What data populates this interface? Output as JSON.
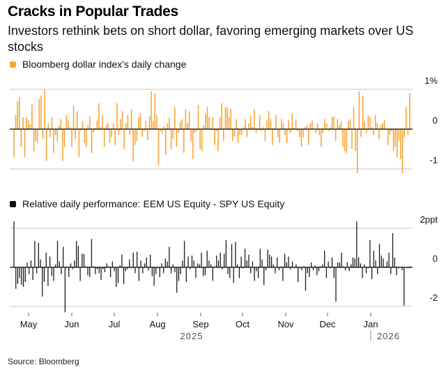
{
  "header": {
    "title": "Cracks in Popular Trades",
    "subtitle": "Investors rethink bets on short dollar, favoring emerging markets over US stocks"
  },
  "footer": {
    "source": "Source: Bloomberg"
  },
  "colors": {
    "dollar_bar": "#f7a535",
    "relative_bar": "#1a1a1a",
    "grid": "#e3e3e3",
    "zero": "#000000"
  },
  "chart_data": [
    {
      "type": "bar",
      "title": "Bloomberg dollar index's daily change",
      "legend": "Bloomberg dollar index's daily change",
      "unit": "%",
      "ylim": [
        -1.1,
        1.05
      ],
      "yticks": [
        {
          "value": 1,
          "label": "1%"
        },
        {
          "value": 0,
          "label": "0"
        },
        {
          "value": -1,
          "label": "-1"
        }
      ],
      "grid": true,
      "values": [
        -0.7,
        0.35,
        0.7,
        0.8,
        -0.45,
        0.3,
        -0.7,
        0.3,
        0.22,
        0.12,
        0.62,
        -0.55,
        -0.3,
        -0.35,
        0.75,
        0.85,
        -0.25,
        1.0,
        -0.8,
        0.15,
        -0.2,
        0.3,
        -0.6,
        -0.15,
        -0.3,
        0.1,
        0.25,
        -0.8,
        -0.45,
        0.35,
        0.22,
        0.05,
        -0.45,
        0.6,
        -0.25,
        0.45,
        -0.7,
        -0.05,
        0.2,
        -0.35,
        -0.45,
        0.1,
        0.32,
        -0.6,
        -0.08,
        0.03,
        0.22,
        0.65,
        0.05,
        0.35,
        -0.45,
        0.1,
        0.15,
        -0.35,
        -0.2,
        0.15,
        -0.4,
        0.65,
        -0.15,
        0.25,
        0.45,
        -0.5,
        0.15,
        0.35,
        -0.15,
        0.5,
        -0.8,
        -0.4,
        -0.3,
        0.3,
        0.4,
        -0.2,
        -0.05,
        0.2,
        -0.28,
        0.32,
        0.95,
        0.2,
        0.9,
        0.35,
        -0.9,
        -0.05,
        -0.1,
        0.08,
        -0.65,
        0.15,
        0.3,
        -0.5,
        -0.25,
        0.55,
        -0.45,
        -0.1,
        0.2,
        0.25,
        -0.6,
        0.5,
        0.15,
        0.45,
        -0.3,
        -0.75,
        -0.1,
        -0.05,
        0.6,
        -0.5,
        -0.55,
        0.1,
        0.38,
        0.55,
        0.3,
        -0.02,
        0.3,
        -0.4,
        -0.05,
        -0.55,
        0.3,
        0.65,
        -0.3,
        0.55,
        0.55,
        0.3,
        0.5,
        -0.3,
        -0.18,
        0.25,
        -0.35,
        -0.15,
        -0.15,
        0.05,
        0.25,
        -0.2,
        0.15,
        0.32,
        0.05,
        0.5,
        -0.1,
        0.02,
        0.35,
        -0.05,
        0.05,
        -0.3,
        0.22,
        0.45,
        0.25,
        -0.4,
        0.02,
        0.35,
        -0.2,
        -0.35,
        0.25,
        0.15,
        -0.15,
        -0.35,
        0.22,
        -0.1,
        0.4,
        0.02,
        0.25,
        -0.05,
        -0.2,
        -0.45,
        -0.2,
        0.05,
        0.1,
        -0.4,
        0.15,
        0.22,
        0.02,
        -0.1,
        0.15,
        -0.15,
        -0.45,
        -0.1,
        0.25,
        0.15,
        -0.05,
        0.05,
        0.3,
        0.32,
        -0.3,
        0.25,
        0.1,
        0.2,
        -0.45,
        -0.55,
        -0.6,
        0.2,
        0.25,
        -0.5,
        0.55,
        -0.55,
        -1.1,
        0.95,
        -0.2,
        0.85,
        0.2,
        -0.1,
        0.35,
        0.3,
        0.05,
        -0.15,
        0.35,
        0.15,
        -0.25,
        0.1,
        0.15,
        0.22,
        0.0,
        -0.4,
        -0.15,
        -0.05,
        -0.55,
        -0.45,
        -0.7,
        -0.3,
        -0.75,
        -1.1,
        -0.2,
        0.55,
        -0.15,
        0.9
      ],
      "xticks": [
        "May",
        "Jun",
        "Jul",
        "Aug",
        "Sep",
        "Oct",
        "Nov",
        "Dec",
        "Jan"
      ],
      "years": [
        "2025",
        "2026"
      ]
    },
    {
      "type": "bar",
      "title": "Relative daily performance: EEM US Equity - SPY US Equity",
      "legend": "Relative daily performance: EEM US Equity - SPY US Equity",
      "unit": "ppt",
      "ylim": [
        -2.3,
        2.5
      ],
      "yticks": [
        {
          "value": 2,
          "label": "2ppt"
        },
        {
          "value": 0,
          "label": "0"
        },
        {
          "value": -2,
          "label": "-2"
        }
      ],
      "grid": true,
      "values": [
        2.35,
        -1.1,
        -0.85,
        -0.55,
        -0.9,
        -1.0,
        -0.75,
        0.25,
        -0.35,
        0.35,
        -0.65,
        1.35,
        -0.3,
        1.25,
        0.4,
        -1.5,
        -0.75,
        0.75,
        -0.95,
        0.55,
        -0.45,
        -0.7,
        0.15,
        1.35,
        0.3,
        -0.35,
        1.05,
        -2.3,
        0.05,
        -0.5,
        0.2,
        -0.1,
        0.35,
        1.35,
        1.1,
        -0.7,
        0.7,
        0.68,
        0.05,
        -0.4,
        -0.5,
        1.45,
        0.05,
        -0.35,
        -0.1,
        -0.3,
        -0.65,
        -0.1,
        -0.25,
        0.2,
        0.05,
        -0.5,
        0.3,
        -0.2,
        -1.0,
        -0.8,
        0.1,
        0.65,
        -0.85,
        -0.2,
        -0.1,
        0.4,
        -0.05,
        0.75,
        -0.3,
        0.8,
        -0.7,
        0.35,
        -0.3,
        0.2,
        0.5,
        -0.15,
        0.65,
        -0.45,
        -0.95,
        -0.35,
        -0.05,
        -0.5,
        0.2,
        -0.3,
        0.45,
        0.3,
        1.05,
        -0.3,
        0.15,
        -0.25,
        -1.3,
        -0.7,
        -0.35,
        0.35,
        1.35,
        -0.75,
        0.55,
        -0.1,
        0.6,
        0.35,
        -0.55,
        0.2,
        0.15,
        0.75,
        -0.45,
        -0.4,
        0.85,
        0.35,
        0.15,
        -0.7,
        0.05,
        0.6,
        0.35,
        0.75,
        -0.1,
        0.7,
        1.4,
        -0.35,
        -0.55,
        1.2,
        -0.8,
        1.3,
        0.15,
        -0.55,
        0.55,
        -0.05,
        0.95,
        0.35,
        0.65,
        -0.3,
        0.3,
        -0.7,
        -0.2,
        -0.55,
        0.95,
        0.4,
        -0.9,
        -0.15,
        0.9,
        0.65,
        0.55,
        0.15,
        -0.3,
        0.5,
        -0.15,
        0.05,
        -0.7,
        0.7,
        0.25,
        0.55,
        -0.1,
        0.3,
        -0.05,
        0.15,
        -0.75,
        -0.05,
        -0.15,
        0.05,
        -1.2,
        -0.3,
        -0.5,
        0.25,
        -0.15,
        0.1,
        -0.4,
        -0.2,
        0.05,
        0.15,
        0.85,
        -0.55,
        0.3,
        -0.05,
        0.5,
        -0.55,
        -1.75,
        0.25,
        0.25,
        0.75,
        0.05,
        -0.15,
        0.25,
        -0.2,
        0.15,
        0.5,
        0.45,
        2.35,
        0.5,
        0.2,
        -0.55,
        0.15,
        -0.3,
        -0.05,
        1.4,
        -0.6,
        0.85,
        0.35,
        -0.35,
        1.2,
        0.6,
        0.45,
        0.05,
        0.3,
        0.75,
        -0.35,
        1.75,
        0.5,
        -0.4,
        -0.05,
        0.0,
        -0.15,
        -1.95,
        0.0,
        -0.05,
        0.05
      ],
      "xticks": [
        "May",
        "Jun",
        "Jul",
        "Aug",
        "Sep",
        "Oct",
        "Nov",
        "Dec",
        "Jan"
      ],
      "years": [
        "2025",
        "2026"
      ]
    }
  ]
}
